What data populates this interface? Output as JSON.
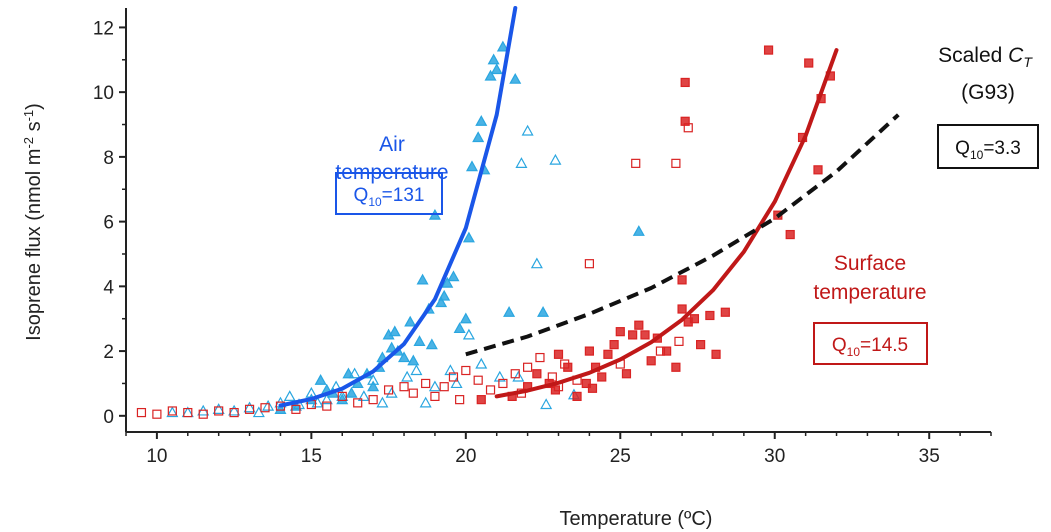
{
  "chart_data": {
    "type": "scatter",
    "xlabel": "Temperature (ºC)",
    "ylabel": "Isoprene flux (nmol m-2 s-1)",
    "ylabel_parts": {
      "main": "Isoprene flux (nmol m",
      "sup1": "-2",
      "mid": " s",
      "sup2": "-1",
      "end": ")"
    },
    "xlim": [
      9,
      37
    ],
    "ylim": [
      -0.5,
      12.6
    ],
    "xticks": [
      10,
      15,
      20,
      25,
      30,
      35
    ],
    "yticks": [
      0,
      2,
      4,
      6,
      8,
      10,
      12
    ],
    "colors": {
      "air": "#1a56e8",
      "air_points": "#2aa6e0",
      "surface": "#d92323",
      "surface_dark": "#c01818",
      "scaled": "#111111"
    },
    "annotations": {
      "air_label": [
        "Air",
        "temperature"
      ],
      "air_q10": {
        "prefix": "Q",
        "sub": "10",
        "value": "=131"
      },
      "surface_label": [
        "Surface",
        "temperature"
      ],
      "surface_q10": {
        "prefix": "Q",
        "sub": "10",
        "value": "=14.5"
      },
      "scaled_label_line1": {
        "text": "Scaled ",
        "var": "C",
        "sub": "T"
      },
      "scaled_label_line2": "(G93)",
      "scaled_q10": {
        "prefix": "Q",
        "sub": "10",
        "value": "=3.3"
      }
    },
    "curves": [
      {
        "name": "Air temperature fit",
        "x": [
          14.0,
          15.0,
          16.0,
          17.0,
          18.0,
          19.0,
          20.0,
          21.0,
          21.6
        ],
        "y": [
          0.32,
          0.52,
          0.84,
          1.37,
          2.22,
          3.6,
          5.8,
          9.3,
          12.6
        ],
        "style": "solid"
      },
      {
        "name": "Surface temperature fit",
        "x": [
          21,
          22,
          23,
          24,
          25,
          26,
          27,
          28,
          29,
          30,
          31,
          32
        ],
        "y": [
          0.6,
          0.78,
          1.02,
          1.33,
          1.74,
          2.27,
          2.97,
          3.88,
          5.07,
          6.62,
          8.65,
          11.3
        ],
        "style": "solid"
      },
      {
        "name": "Scaled CT (G93)",
        "x": [
          20,
          22,
          24,
          26,
          28,
          30,
          32,
          34
        ],
        "y": [
          1.9,
          2.45,
          3.15,
          3.95,
          4.95,
          6.1,
          7.55,
          9.3
        ],
        "style": "dashed"
      }
    ],
    "series": [
      {
        "name": "Air temperature (filled)",
        "marker": "triangle",
        "filled": true,
        "points": [
          [
            14.0,
            0.2
          ],
          [
            14.5,
            0.3
          ],
          [
            15.0,
            0.5
          ],
          [
            15.3,
            1.1
          ],
          [
            15.5,
            0.8
          ],
          [
            15.7,
            0.7
          ],
          [
            16.0,
            0.5
          ],
          [
            16.2,
            1.3
          ],
          [
            16.5,
            1.0
          ],
          [
            16.8,
            1.3
          ],
          [
            17.0,
            0.9
          ],
          [
            17.2,
            1.5
          ],
          [
            17.5,
            2.5
          ],
          [
            17.6,
            2.1
          ],
          [
            17.7,
            2.6
          ],
          [
            17.8,
            2.0
          ],
          [
            18.0,
            1.8
          ],
          [
            18.2,
            2.9
          ],
          [
            18.3,
            1.7
          ],
          [
            18.5,
            2.3
          ],
          [
            18.6,
            4.2
          ],
          [
            18.8,
            3.3
          ],
          [
            19.0,
            6.2
          ],
          [
            19.2,
            3.5
          ],
          [
            19.4,
            4.1
          ],
          [
            19.6,
            4.3
          ],
          [
            19.8,
            2.7
          ],
          [
            20.0,
            3.0
          ],
          [
            20.1,
            5.5
          ],
          [
            20.2,
            7.7
          ],
          [
            20.4,
            8.6
          ],
          [
            20.5,
            9.1
          ],
          [
            20.6,
            7.6
          ],
          [
            20.8,
            10.5
          ],
          [
            20.9,
            11.0
          ],
          [
            21.0,
            10.7
          ],
          [
            21.2,
            11.4
          ],
          [
            21.4,
            3.2
          ],
          [
            21.6,
            10.4
          ],
          [
            22.5,
            3.2
          ],
          [
            25.6,
            5.7
          ],
          [
            17.3,
            1.8
          ],
          [
            16.3,
            0.7
          ],
          [
            18.9,
            2.2
          ],
          [
            19.3,
            3.7
          ]
        ]
      },
      {
        "name": "Air temperature (open)",
        "marker": "triangle",
        "filled": false,
        "points": [
          [
            10.5,
            0.1
          ],
          [
            11.0,
            0.1
          ],
          [
            11.5,
            0.15
          ],
          [
            12.0,
            0.2
          ],
          [
            12.5,
            0.15
          ],
          [
            13.0,
            0.25
          ],
          [
            13.3,
            0.1
          ],
          [
            13.6,
            0.3
          ],
          [
            14.0,
            0.4
          ],
          [
            14.3,
            0.6
          ],
          [
            14.6,
            0.35
          ],
          [
            15.0,
            0.7
          ],
          [
            15.2,
            0.4
          ],
          [
            15.5,
            0.5
          ],
          [
            15.8,
            0.9
          ],
          [
            16.0,
            0.6
          ],
          [
            16.4,
            1.3
          ],
          [
            16.7,
            0.6
          ],
          [
            17.0,
            1.1
          ],
          [
            17.3,
            0.4
          ],
          [
            17.6,
            0.7
          ],
          [
            18.1,
            1.2
          ],
          [
            18.4,
            1.4
          ],
          [
            18.7,
            0.4
          ],
          [
            19.0,
            0.9
          ],
          [
            19.5,
            1.4
          ],
          [
            20.1,
            2.5
          ],
          [
            20.5,
            1.6
          ],
          [
            21.1,
            1.2
          ],
          [
            21.8,
            7.8
          ],
          [
            22.3,
            4.7
          ],
          [
            22.9,
            7.9
          ],
          [
            22.6,
            0.35
          ],
          [
            23.5,
            0.65
          ],
          [
            22.0,
            8.8
          ],
          [
            21.7,
            1.2
          ],
          [
            19.7,
            1.0
          ]
        ]
      },
      {
        "name": "Surface temperature (filled)",
        "marker": "square",
        "filled": true,
        "points": [
          [
            20.5,
            0.5
          ],
          [
            21.5,
            0.6
          ],
          [
            22.0,
            0.9
          ],
          [
            22.3,
            1.3
          ],
          [
            22.7,
            1.0
          ],
          [
            23.0,
            1.9
          ],
          [
            23.3,
            1.5
          ],
          [
            23.6,
            0.6
          ],
          [
            24.0,
            2.0
          ],
          [
            24.2,
            1.5
          ],
          [
            24.4,
            1.2
          ],
          [
            24.6,
            1.9
          ],
          [
            24.8,
            2.2
          ],
          [
            25.0,
            2.6
          ],
          [
            25.2,
            1.3
          ],
          [
            25.4,
            2.5
          ],
          [
            25.6,
            2.8
          ],
          [
            25.8,
            2.5
          ],
          [
            26.0,
            1.7
          ],
          [
            26.2,
            2.4
          ],
          [
            26.5,
            2.0
          ],
          [
            26.8,
            1.5
          ],
          [
            27.0,
            3.3
          ],
          [
            27.2,
            2.9
          ],
          [
            27.4,
            3.0
          ],
          [
            27.6,
            2.2
          ],
          [
            27.9,
            3.1
          ],
          [
            28.1,
            1.9
          ],
          [
            28.4,
            3.2
          ],
          [
            27.0,
            4.2
          ],
          [
            27.1,
            9.1
          ],
          [
            27.1,
            10.3
          ],
          [
            29.8,
            11.3
          ],
          [
            30.1,
            6.2
          ],
          [
            30.5,
            5.6
          ],
          [
            30.9,
            8.6
          ],
          [
            31.1,
            10.9
          ],
          [
            31.4,
            7.6
          ],
          [
            31.5,
            9.8
          ],
          [
            31.8,
            10.5
          ],
          [
            24.1,
            0.85
          ],
          [
            23.9,
            1.0
          ],
          [
            22.9,
            0.8
          ]
        ]
      },
      {
        "name": "Surface temperature (open)",
        "marker": "square",
        "filled": false,
        "points": [
          [
            9.5,
            0.1
          ],
          [
            10.0,
            0.05
          ],
          [
            10.5,
            0.15
          ],
          [
            11.0,
            0.1
          ],
          [
            11.5,
            0.05
          ],
          [
            12.0,
            0.15
          ],
          [
            12.5,
            0.1
          ],
          [
            13.0,
            0.2
          ],
          [
            13.5,
            0.25
          ],
          [
            14.0,
            0.3
          ],
          [
            14.5,
            0.2
          ],
          [
            15.0,
            0.35
          ],
          [
            15.5,
            0.3
          ],
          [
            16.0,
            0.6
          ],
          [
            16.5,
            0.4
          ],
          [
            17.0,
            0.5
          ],
          [
            17.5,
            0.8
          ],
          [
            18.0,
            0.9
          ],
          [
            18.3,
            0.7
          ],
          [
            18.7,
            1.0
          ],
          [
            19.0,
            0.6
          ],
          [
            19.3,
            0.9
          ],
          [
            19.6,
            1.2
          ],
          [
            20.0,
            1.4
          ],
          [
            20.4,
            1.1
          ],
          [
            20.8,
            0.8
          ],
          [
            21.2,
            1.0
          ],
          [
            21.6,
            1.3
          ],
          [
            22.0,
            1.5
          ],
          [
            22.4,
            1.8
          ],
          [
            22.8,
            1.2
          ],
          [
            23.2,
            1.6
          ],
          [
            23.6,
            1.1
          ],
          [
            24.0,
            4.7
          ],
          [
            25.5,
            7.8
          ],
          [
            26.8,
            7.8
          ],
          [
            27.2,
            8.9
          ],
          [
            26.9,
            2.3
          ],
          [
            26.3,
            2.0
          ],
          [
            25.0,
            1.6
          ],
          [
            23.0,
            0.9
          ],
          [
            21.8,
            0.7
          ],
          [
            19.8,
            0.5
          ]
        ]
      }
    ]
  }
}
